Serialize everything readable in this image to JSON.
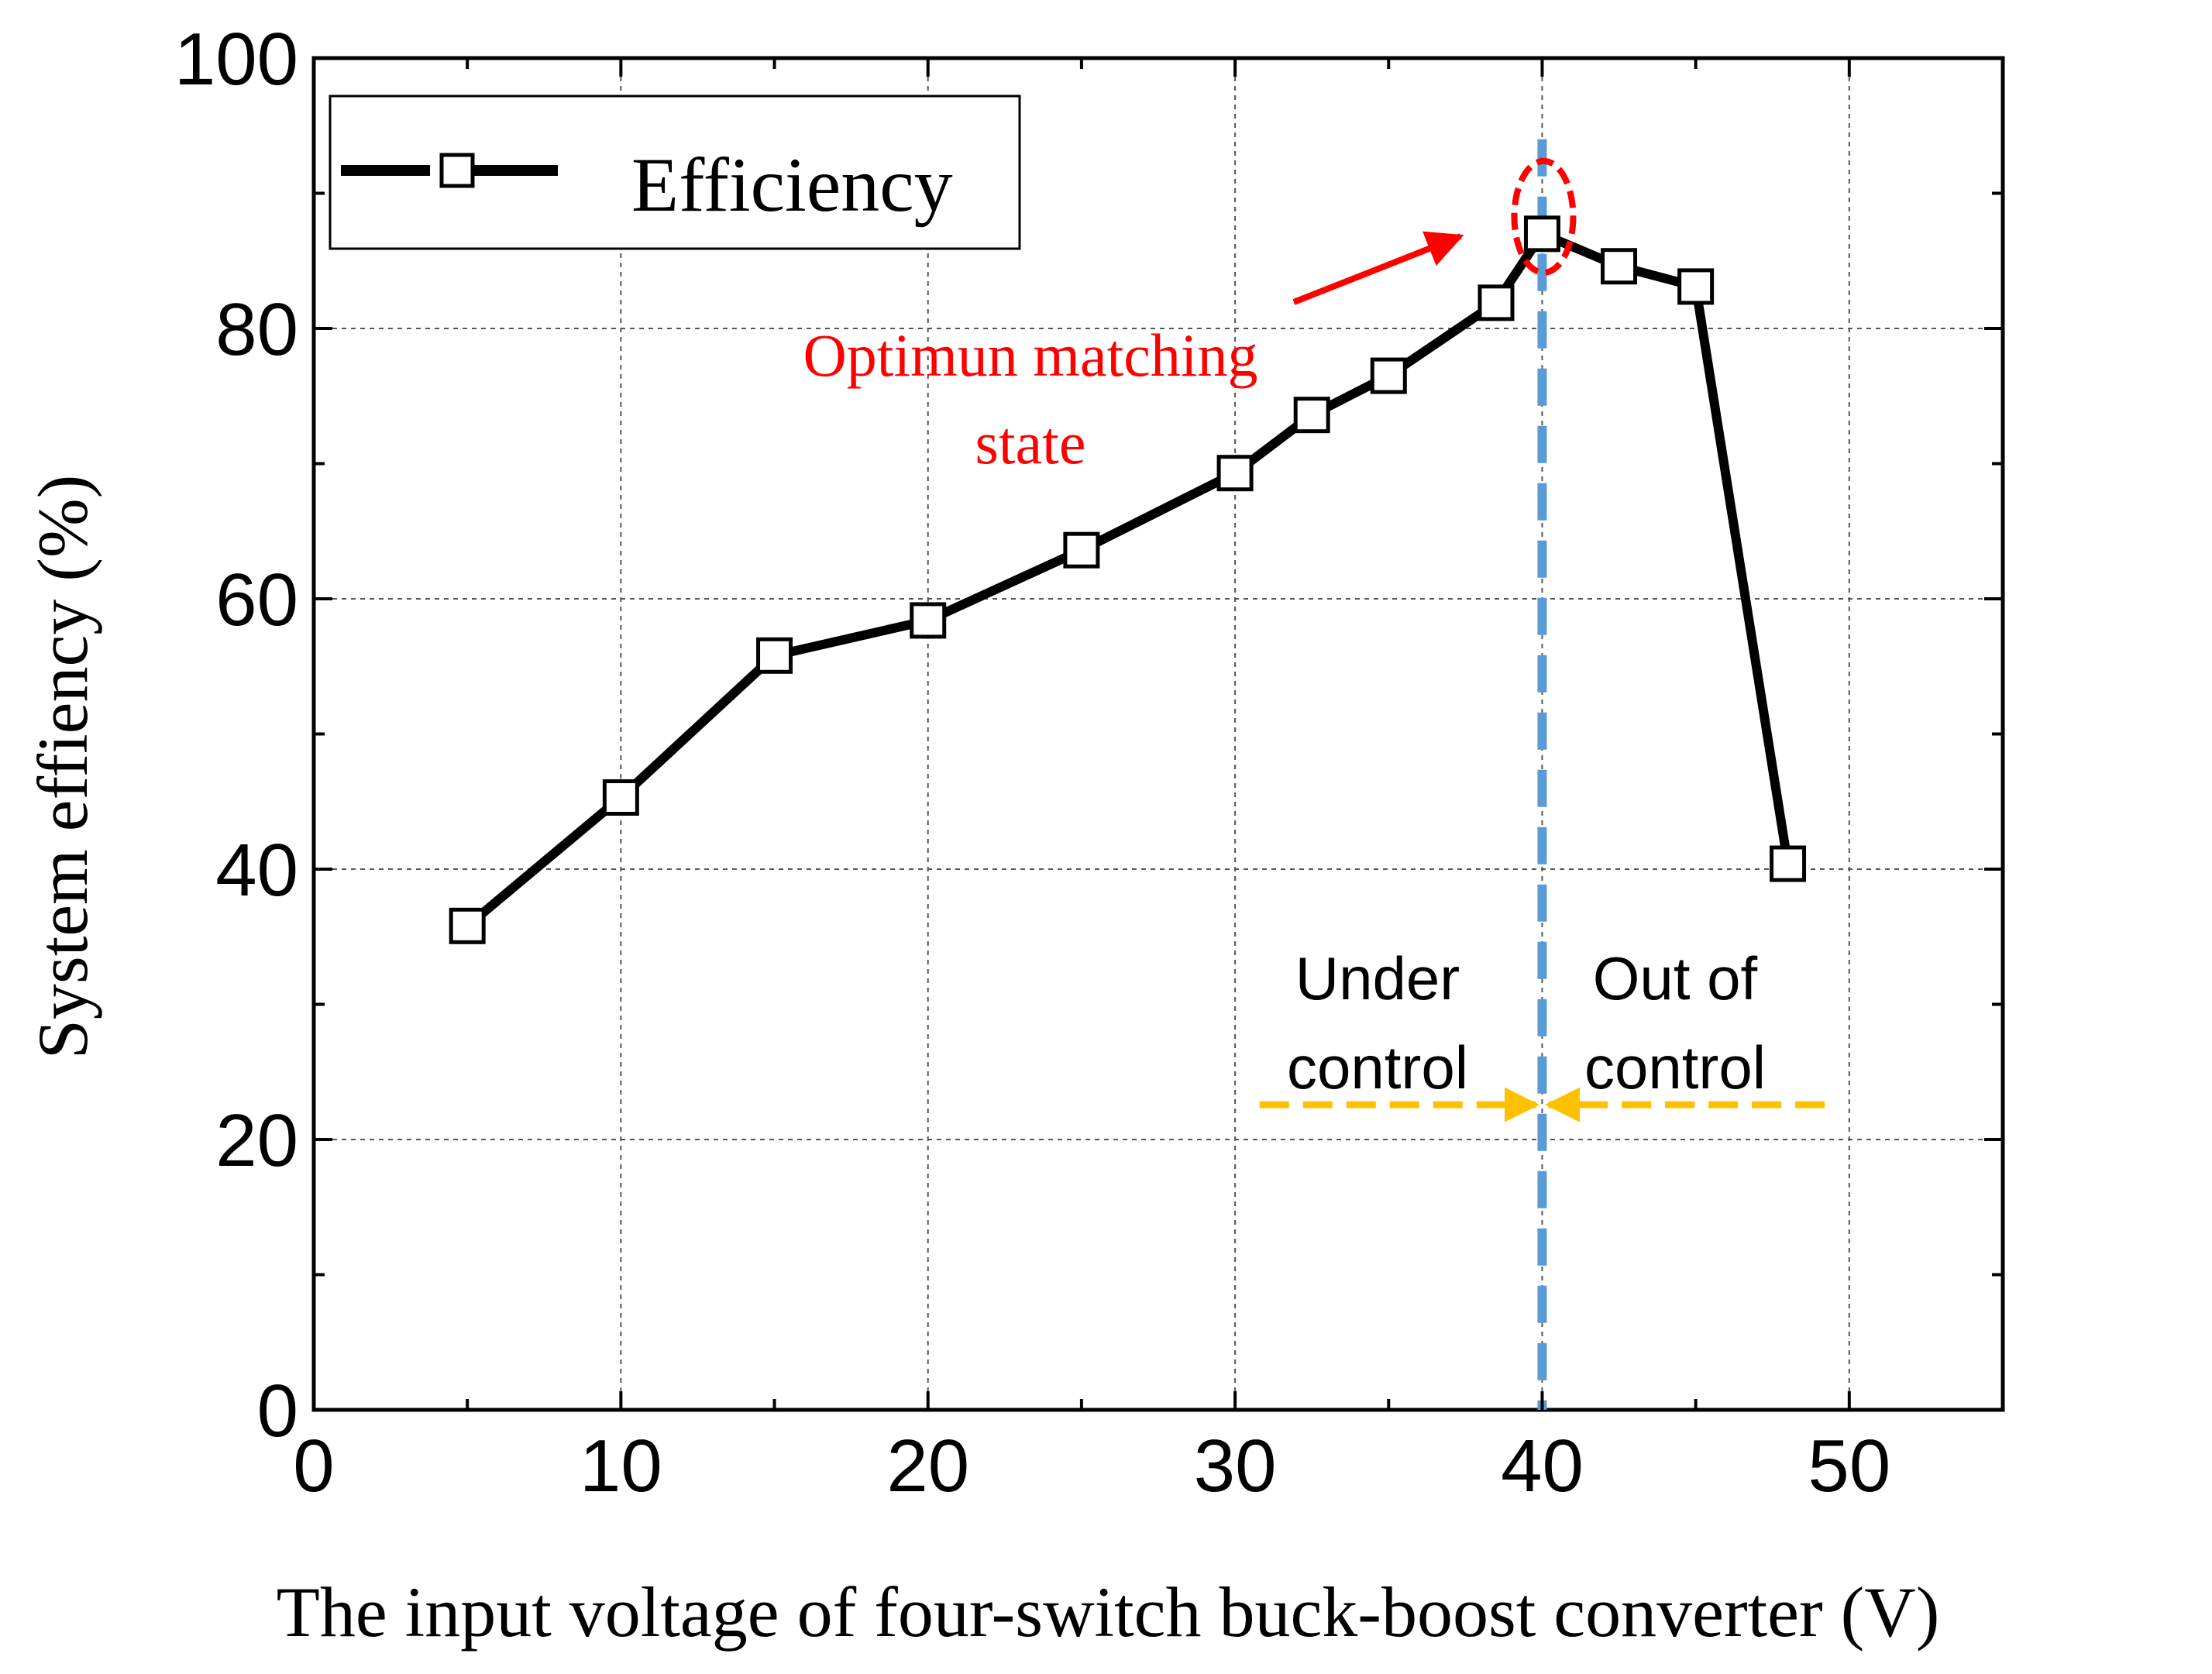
{
  "chart_data": {
    "type": "line",
    "xlabel": "The input voltage of four-switch buck-boost converter (V)",
    "ylabel": "System effiency  (%)",
    "xlim": [
      0,
      55
    ],
    "ylim": [
      0,
      100
    ],
    "x_ticks": [
      "0",
      "10",
      "20",
      "30",
      "40",
      "50"
    ],
    "y_ticks": [
      "0",
      "20",
      "40",
      "60",
      "80",
      "100"
    ],
    "grid": "dashed, at major ticks",
    "legend_position": "top-left",
    "series": [
      {
        "name": "Efficiency",
        "color": "#000000",
        "marker": "open-square",
        "x": [
          5,
          10,
          15,
          20,
          25,
          30,
          32.5,
          35,
          38.5,
          40,
          42.5,
          45,
          48
        ],
        "y": [
          35.8,
          45.3,
          55.8,
          58.4,
          63.6,
          69.3,
          73.6,
          76.5,
          81.9,
          87.0,
          84.6,
          83.1,
          40.4
        ]
      }
    ],
    "annotations": {
      "optimum_label_line1": "Optimun matching",
      "optimum_label_line2": "state",
      "under_line1": "Under",
      "under_line2": "control",
      "out_line1": "Out of",
      "out_line2": "control",
      "vertical_marker_x": 40,
      "highlight_color": "#ff0000",
      "divider_color": "#5b9bd5",
      "range_arrow_color": "#ffc000",
      "range_arrow_y": 22,
      "under_arrow_from_x": 30.8,
      "out_arrow_from_x": 49.2
    }
  }
}
